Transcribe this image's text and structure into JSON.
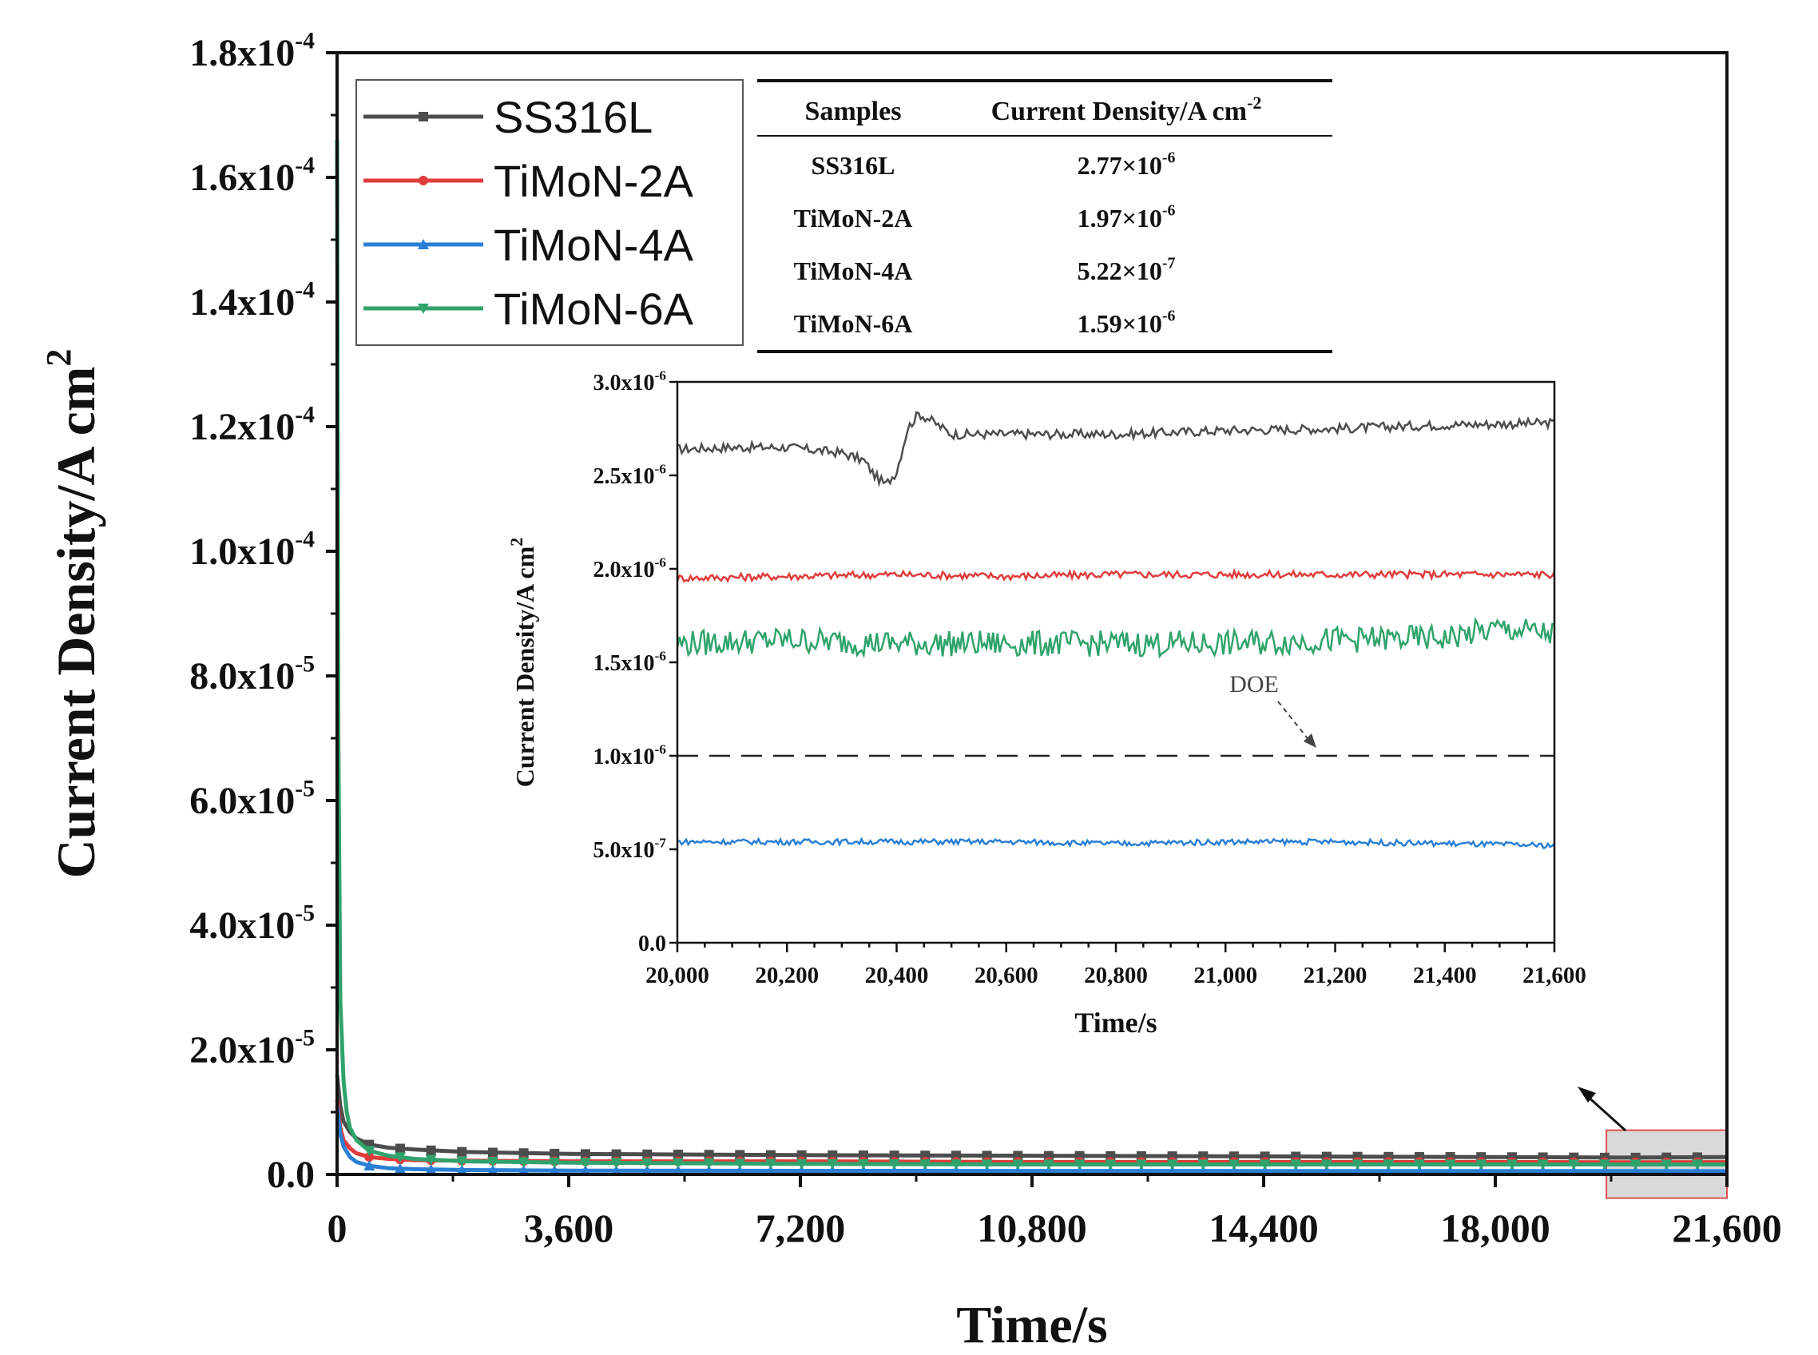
{
  "chart_data": [
    {
      "type": "line",
      "xlabel": "Time/s",
      "ylabel": "Current Density/A cm",
      "ylabel_sup": "2",
      "xlim": [
        0,
        21600
      ],
      "ylim": [
        0,
        0.00018
      ],
      "x_ticks": [
        0,
        3600,
        7200,
        10800,
        14400,
        18000,
        21600
      ],
      "x_tick_labels": [
        "0",
        "3,600",
        "7,200",
        "10,800",
        "14,400",
        "18,000",
        "21,600"
      ],
      "y_ticks": [
        {
          "value": 0,
          "base": "0.0",
          "exp": ""
        },
        {
          "value": 2e-05,
          "base": "2.0x10",
          "exp": "-5"
        },
        {
          "value": 4e-05,
          "base": "4.0x10",
          "exp": "-5"
        },
        {
          "value": 6e-05,
          "base": "6.0x10",
          "exp": "-5"
        },
        {
          "value": 8e-05,
          "base": "8.0x10",
          "exp": "-5"
        },
        {
          "value": 0.0001,
          "base": "1.0x10",
          "exp": "-4"
        },
        {
          "value": 0.00012,
          "base": "1.2x10",
          "exp": "-4"
        },
        {
          "value": 0.00014,
          "base": "1.4x10",
          "exp": "-4"
        },
        {
          "value": 0.00016,
          "base": "1.6x10",
          "exp": "-4"
        },
        {
          "value": 0.00018,
          "base": "1.8x10",
          "exp": "-4"
        }
      ],
      "legend_position": "top-left",
      "series": [
        {
          "name": "SS316L",
          "color": "#4d4d4d",
          "marker": "square",
          "x": [
            0,
            50,
            100,
            200,
            300,
            500,
            800,
            1200,
            2000,
            3600,
            7200,
            10800,
            14400,
            18000,
            20000,
            21600
          ],
          "y": [
            1.6e-05,
            1.1e-05,
            8.5e-06,
            6.8e-06,
            5.8e-06,
            4.8e-06,
            4.3e-06,
            4e-06,
            3.6e-06,
            3.3e-06,
            3.1e-06,
            3e-06,
            2.9e-06,
            2.8e-06,
            2.7e-06,
            2.8e-06
          ]
        },
        {
          "name": "TiMoN-2A",
          "color": "#e03c3c",
          "marker": "circle",
          "x": [
            0,
            50,
            100,
            200,
            300,
            500,
            800,
            1200,
            2000,
            3600,
            7200,
            10800,
            14400,
            18000,
            20000,
            21600
          ],
          "y": [
            1.2e-05,
            7.5e-06,
            5.5e-06,
            4.2e-06,
            3.4e-06,
            2.8e-06,
            2.5e-06,
            2.3e-06,
            2.2e-06,
            2.1e-06,
            2.1e-06,
            2e-06,
            2e-06,
            2e-06,
            1.95e-06,
            1.97e-06
          ]
        },
        {
          "name": "TiMoN-4A",
          "color": "#2a7fd4",
          "marker": "triangle-up",
          "x": [
            0,
            50,
            100,
            200,
            300,
            500,
            800,
            1200,
            2000,
            3600,
            7200,
            10800,
            14400,
            18000,
            20000,
            21600
          ],
          "y": [
            1.1e-05,
            6.5e-06,
            4.5e-06,
            2.8e-06,
            2e-06,
            1.4e-06,
            1e-06,
            8.5e-07,
            7e-07,
            6.2e-07,
            5.8e-07,
            5.6e-07,
            5.5e-07,
            5.4e-07,
            5.4e-07,
            5.2e-07
          ]
        },
        {
          "name": "TiMoN-6A",
          "color": "#2fa36b",
          "marker": "triangle-down",
          "x": [
            0,
            20,
            50,
            100,
            150,
            200,
            300,
            500,
            800,
            1200,
            2000,
            3600,
            7200,
            10800,
            14400,
            18000,
            20000,
            21600
          ],
          "y": [
            0.000166,
            7e-05,
            2.8e-05,
            1.5e-05,
            1e-05,
            7.5e-06,
            5.5e-06,
            3.8e-06,
            3e-06,
            2.5e-06,
            2.1e-06,
            1.9e-06,
            1.7e-06,
            1.6e-06,
            1.6e-06,
            1.6e-06,
            1.6e-06,
            1.6e-06
          ]
        }
      ],
      "annotations": [
        {
          "type": "zoom-box",
          "xlim": [
            20000,
            21600
          ],
          "ylim": [
            -3.8e-06,
            7.1e-06
          ],
          "fill": "#d9d9d9",
          "stroke": "#e05050"
        }
      ]
    },
    {
      "type": "line",
      "role": "inset",
      "xlabel": "Time/s",
      "ylabel": "Current Density/A cm",
      "ylabel_sup": "2",
      "xlim": [
        20000,
        21600
      ],
      "ylim": [
        0,
        3e-06
      ],
      "x_ticks": [
        20000,
        20200,
        20400,
        20600,
        20800,
        21000,
        21200,
        21400,
        21600
      ],
      "x_tick_labels": [
        "20,000",
        "20,200",
        "20,400",
        "20,600",
        "20,800",
        "21,000",
        "21,200",
        "21,400",
        "21,600"
      ],
      "y_ticks": [
        {
          "value": 0,
          "base": "0.0",
          "exp": ""
        },
        {
          "value": 5e-07,
          "base": "5.0x10",
          "exp": "-7"
        },
        {
          "value": 1e-06,
          "base": "1.0x10",
          "exp": "-6"
        },
        {
          "value": 1.5e-06,
          "base": "1.5x10",
          "exp": "-6"
        },
        {
          "value": 2e-06,
          "base": "2.0x10",
          "exp": "-6"
        },
        {
          "value": 2.5e-06,
          "base": "2.5x10",
          "exp": "-6"
        },
        {
          "value": 3e-06,
          "base": "3.0x10",
          "exp": "-6"
        }
      ],
      "series": [
        {
          "name": "SS316L",
          "color": "#4d4d4d",
          "x": [
            20000,
            20100,
            20200,
            20300,
            20340,
            20360,
            20380,
            20400,
            20420,
            20440,
            20460,
            20500,
            20600,
            20800,
            21000,
            21200,
            21400,
            21600
          ],
          "y": [
            2.64e-06,
            2.65e-06,
            2.65e-06,
            2.62e-06,
            2.58e-06,
            2.5e-06,
            2.45e-06,
            2.52e-06,
            2.75e-06,
            2.83e-06,
            2.8e-06,
            2.72e-06,
            2.72e-06,
            2.72e-06,
            2.74e-06,
            2.75e-06,
            2.77e-06,
            2.78e-06
          ]
        },
        {
          "name": "TiMoN-2A",
          "color": "#e03c3c",
          "x": [
            20000,
            20200,
            20400,
            20600,
            20800,
            21000,
            21200,
            21400,
            21600
          ],
          "y": [
            1.95e-06,
            1.96e-06,
            1.97e-06,
            1.96e-06,
            1.97e-06,
            1.97e-06,
            1.97e-06,
            1.97e-06,
            1.97e-06
          ]
        },
        {
          "name": "TiMoN-6A",
          "color": "#2fa36b",
          "x": [
            20000,
            20200,
            20400,
            20600,
            20800,
            21000,
            21200,
            21400,
            21500,
            21600
          ],
          "y": [
            1.6e-06,
            1.62e-06,
            1.6e-06,
            1.6e-06,
            1.6e-06,
            1.6e-06,
            1.62e-06,
            1.63e-06,
            1.68e-06,
            1.65e-06
          ]
        },
        {
          "name": "TiMoN-4A",
          "color": "#2a7fd4",
          "x": [
            20000,
            20200,
            20400,
            20600,
            20800,
            21000,
            21200,
            21400,
            21600
          ],
          "y": [
            5.4e-07,
            5.4e-07,
            5.4e-07,
            5.4e-07,
            5.3e-07,
            5.4e-07,
            5.4e-07,
            5.3e-07,
            5.2e-07
          ]
        }
      ],
      "reference_line": {
        "y": 1e-06,
        "label": "DOE",
        "style": "dashed"
      }
    }
  ],
  "table": {
    "headers": [
      "Samples",
      "Current Density/A cm",
      "-2"
    ],
    "rows": [
      {
        "sample": "SS316L",
        "base": "2.77×10",
        "exp": "-6"
      },
      {
        "sample": "TiMoN-2A",
        "base": "1.97×10",
        "exp": "-6"
      },
      {
        "sample": "TiMoN-4A",
        "base": "5.22×10",
        "exp": "-7"
      },
      {
        "sample": "TiMoN-6A",
        "base": "1.59×10",
        "exp": "-6"
      }
    ]
  }
}
